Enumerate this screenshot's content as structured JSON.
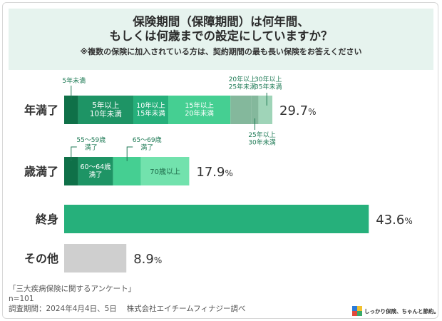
{
  "header": {
    "title_line1": "保険期間（保障期間）は何年間、",
    "title_line2": "もしくは何歳までの設定にしていますか？",
    "note": "※複数の保険に加入されている方は、契約期間の最も長い保険をお答えください"
  },
  "footer": {
    "survey_name": "「三大疾病保険に関するアンケート」",
    "sample": "n=101",
    "period": "調査期間：2024年4月4日、5日　 株式会社エイチームフィナジー調べ"
  },
  "brand": {
    "text": "しっかり保険、ちゃんと節約。",
    "colors": [
      "#2b7bd9",
      "#f2c12e",
      "#e2493b",
      "#3aaa6a"
    ]
  },
  "colors": {
    "green_darkest": "#0f7048",
    "green_dark": "#1e9465",
    "green_mid": "#26b07b",
    "green_light": "#45cf92",
    "green_pale": "#72e2ad",
    "grey_green": "#84b89c",
    "grey_green_light": "#9fd4b8",
    "grey": "#cfcfcf",
    "header_bg": "#e6f3ee"
  },
  "chart_data": {
    "type": "bar",
    "orientation": "horizontal-stacked",
    "categories": [
      "年満了",
      "歳満了",
      "終身",
      "その他"
    ],
    "totals": [
      "29.7",
      "17.9",
      "43.6",
      "8.9"
    ],
    "unit": "%",
    "rows": [
      {
        "category": "年満了",
        "segments": [
          {
            "label": "5年未満",
            "value": 2.0
          },
          {
            "label": "5年以上10年未満",
            "value": 7.9
          },
          {
            "label": "10年以上15年未満",
            "value": 5.0
          },
          {
            "label": "15年以上20年未満",
            "value": 8.9
          },
          {
            "label": "20年以上25年未満",
            "value": 3.0
          },
          {
            "label": "25年以上30年未満",
            "value": 1.0
          },
          {
            "label": "30年以上35年未満",
            "value": 2.0
          }
        ]
      },
      {
        "category": "歳満了",
        "segments": [
          {
            "label": "55〜59歳満了",
            "value": 2.0
          },
          {
            "label": "60〜64歳満了",
            "value": 5.0
          },
          {
            "label": "65〜69歳満了",
            "value": 4.0
          },
          {
            "label": "70歳以上",
            "value": 6.9
          }
        ]
      },
      {
        "category": "終身",
        "segments": [
          {
            "label": "",
            "value": 43.6
          }
        ]
      },
      {
        "category": "その他",
        "segments": [
          {
            "label": "",
            "value": 8.9
          }
        ]
      }
    ]
  }
}
